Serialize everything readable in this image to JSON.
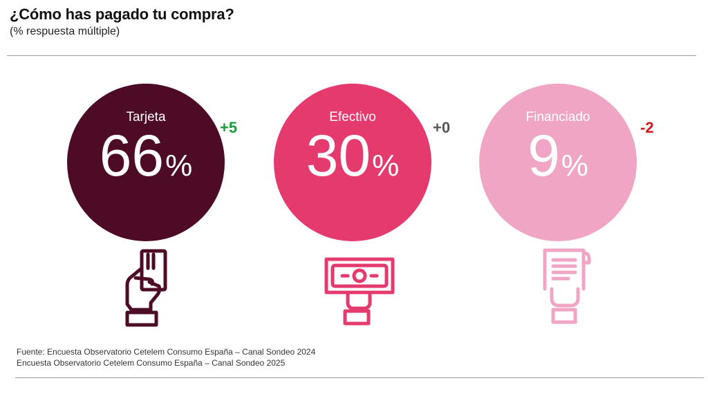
{
  "header": {
    "title": "¿Cómo has pagado tu compra?",
    "subtitle": "(% respuesta múltiple)"
  },
  "chart_data": {
    "type": "bar",
    "title": "¿Cómo has pagado tu compra?",
    "subtitle": "(% respuesta múltiple)",
    "categories": [
      "Tarjeta",
      "Efectivo",
      "Financiado"
    ],
    "values": [
      66,
      30,
      9
    ],
    "unit": "%",
    "deltas": [
      "+5",
      "+0",
      "-2"
    ],
    "colors": [
      "#4e0b25",
      "#e43a6d",
      "#f0a5c4"
    ],
    "delta_colors": [
      "#1a9a3a",
      "#555555",
      "#d4151c"
    ],
    "icons": [
      "hand-card-icon",
      "hand-banknote-icon",
      "hand-receipt-icon"
    ]
  },
  "items": [
    {
      "label": "Tarjeta",
      "value": "66",
      "pct": "%",
      "delta": "+5"
    },
    {
      "label": "Efectivo",
      "value": "30",
      "pct": "%",
      "delta": "+0"
    },
    {
      "label": "Financiado",
      "value": "9",
      "pct": "%",
      "delta": "-2"
    }
  ],
  "source": {
    "line1": "Fuente: Encuesta Observatorio Cetelem Consumo España – Canal Sondeo 2024",
    "line2": "Encuesta Observatorio Cetelem Consumo España – Canal Sondeo 2025"
  }
}
